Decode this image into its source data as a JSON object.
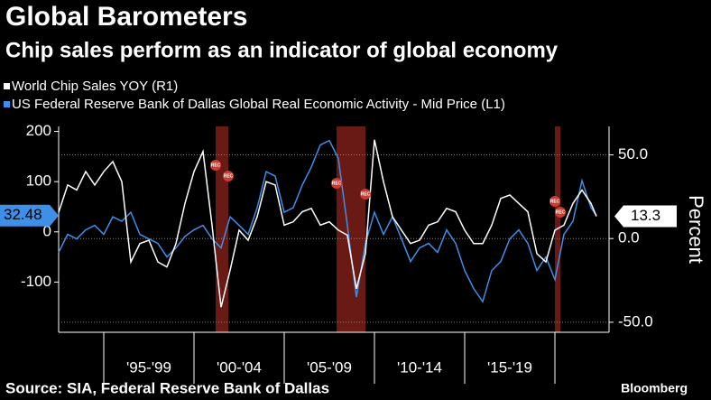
{
  "chart_data": {
    "type": "line",
    "title": "Global Barometers",
    "subtitle": "Chip sales perform as an indicator of global economy",
    "y2_label": "Percent",
    "source": "Source: SIA, Federal Reserve Bank of Dallas",
    "brand": "Bloomberg",
    "recession_label": "REC",
    "recessions": [
      [
        2001.2,
        2001.9
      ],
      [
        2007.9,
        2009.5
      ],
      [
        2020.0,
        2020.3
      ]
    ],
    "xlim": [
      1992.5,
      2023
    ],
    "xticks": [
      {
        "value": 1997.5,
        "label": "'95-'99"
      },
      {
        "value": 2002.5,
        "label": "'00-'04"
      },
      {
        "value": 2007.5,
        "label": "'05-'09"
      },
      {
        "value": 2012.5,
        "label": "'10-'14"
      },
      {
        "value": 2017.5,
        "label": "'15-'19"
      }
    ],
    "ylim": [
      -200,
      210
    ],
    "yticks": [
      200,
      100,
      0,
      -100
    ],
    "y2lim": [
      -56,
      67
    ],
    "y2ticks": [
      {
        "value": 50,
        "label": "50.0"
      },
      {
        "value": 0,
        "label": "0.0"
      },
      {
        "value": -50,
        "label": "-50.0"
      }
    ],
    "grid": true,
    "x": [
      1992.5,
      1993,
      1993.5,
      1994,
      1994.5,
      1995,
      1995.5,
      1996,
      1996.5,
      1997,
      1997.5,
      1998,
      1998.5,
      1999,
      1999.5,
      2000,
      2000.5,
      2001,
      2001.5,
      2002,
      2002.5,
      2003,
      2003.5,
      2004,
      2004.5,
      2005,
      2005.5,
      2006,
      2006.5,
      2007,
      2007.5,
      2008,
      2008.5,
      2009,
      2009.5,
      2010,
      2010.5,
      2011,
      2011.5,
      2012,
      2012.5,
      2013,
      2013.5,
      2014,
      2014.5,
      2015,
      2015.5,
      2016,
      2016.5,
      2017,
      2017.5,
      2018,
      2018.5,
      2019,
      2019.5,
      2020,
      2020.5,
      2021,
      2021.5,
      2022,
      2022.3
    ],
    "series": [
      {
        "name": "World Chip Sales YOY (R1)",
        "color": "#ffffff",
        "axis": "y2",
        "end_label": "13.3",
        "values": [
          15.6,
          32,
          29,
          40,
          32,
          40,
          46,
          34,
          -14,
          -3,
          -1,
          -14,
          -17,
          -3,
          21,
          40,
          52,
          8,
          -41,
          -19,
          5,
          -1,
          13,
          34,
          32,
          8,
          10,
          16,
          18,
          8,
          10,
          5,
          2,
          -30,
          -9,
          59,
          34,
          13,
          5,
          -3,
          -1,
          8,
          10,
          18,
          16,
          5,
          -3,
          -3,
          8,
          24,
          26,
          21,
          16,
          -9,
          -14,
          5,
          8,
          21,
          29,
          21,
          13.3
        ]
      },
      {
        "name": "US Federal Reserve Bank of Dallas Global Real Economic Activity - Mid Price (L1)",
        "color": "#3d8fe8",
        "axis": "y",
        "end_label": "32.48",
        "values": [
          -41,
          -5,
          -14,
          4,
          13,
          -5,
          30,
          21,
          39,
          -5,
          -14,
          -23,
          -50,
          -32,
          -9,
          4,
          13,
          -14,
          -32,
          30,
          13,
          -5,
          48,
          120,
          111,
          39,
          48,
          93,
          129,
          173,
          182,
          146,
          13,
          -130,
          -23,
          39,
          -5,
          30,
          -14,
          -59,
          -32,
          -23,
          -41,
          4,
          -23,
          -77,
          -113,
          -139,
          -77,
          -59,
          -14,
          4,
          -23,
          -77,
          -50,
          -95,
          -5,
          21,
          102,
          48,
          32.48
        ]
      }
    ]
  }
}
